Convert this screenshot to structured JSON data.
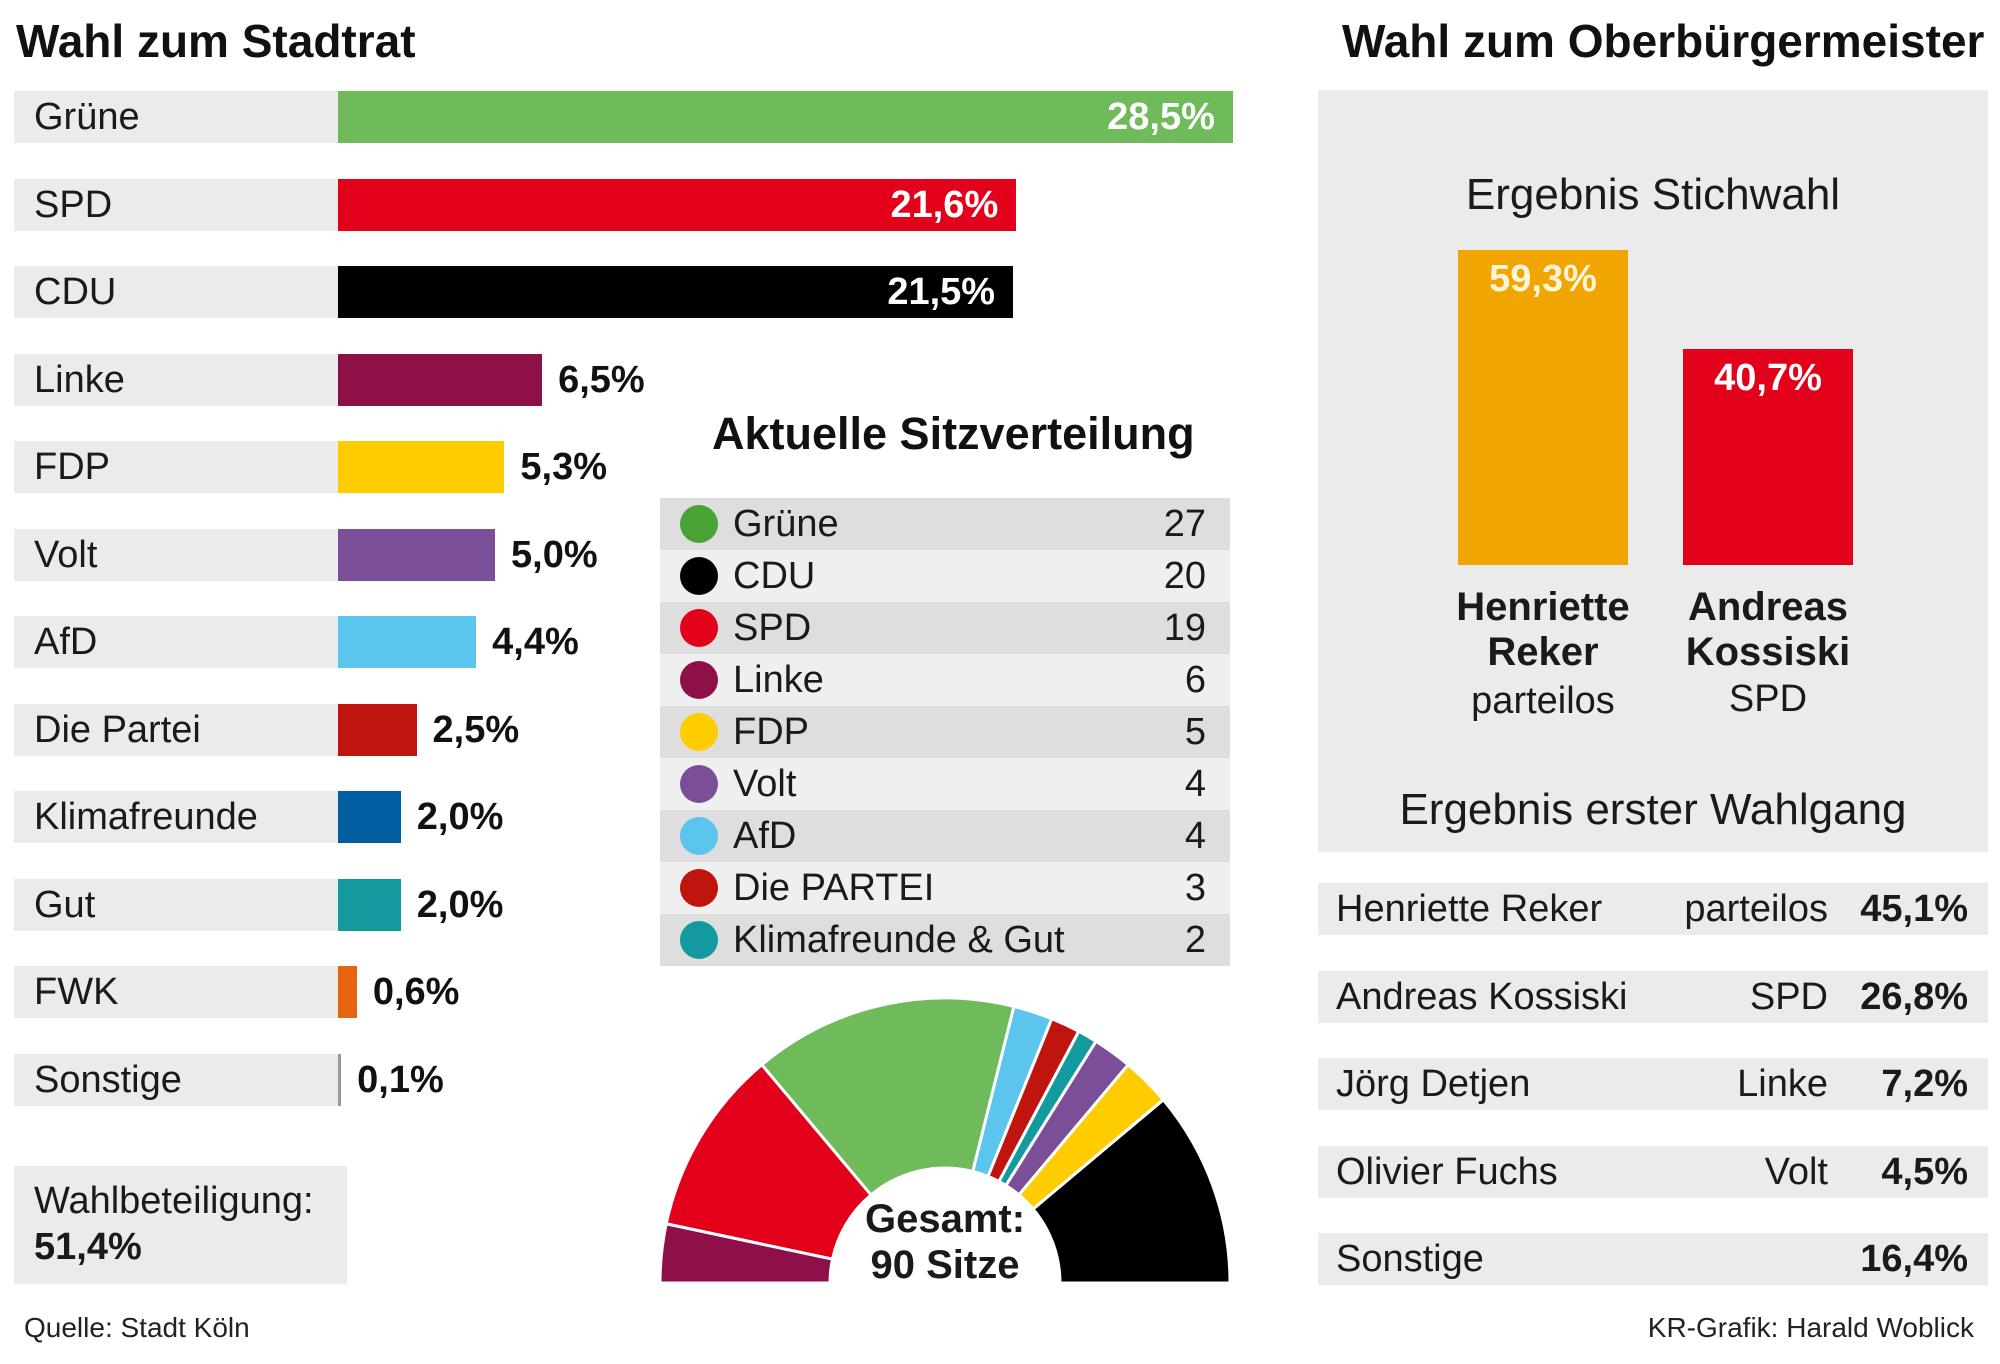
{
  "stadtrat": {
    "title": "Wahl zum Stadtrat",
    "turnout_label": "Wahlbeteiligung:",
    "turnout_value": "51,4%"
  },
  "sitze": {
    "title": "Aktuelle Sitzverteilung",
    "total_line1": "Gesamt:",
    "total_line2": "90 Sitze"
  },
  "ob": {
    "title": "Wahl zum Oberbürgermeister",
    "runoff_title": "Ergebnis Stichwahl",
    "first_round_title": "Ergebnis erster Wahlgang",
    "runoff": [
      {
        "first": "Henriette",
        "last": "Reker",
        "party": "parteilos",
        "label": "59,3%",
        "value": 59.3,
        "color": "#f0a500"
      },
      {
        "first": "Andreas",
        "last": "Kossiski",
        "party": "SPD",
        "label": "40,7%",
        "value": 40.7,
        "color": "#e2001a"
      }
    ],
    "first_round": [
      {
        "name": "Henriette Reker",
        "party": "parteilos",
        "pct": "45,1%"
      },
      {
        "name": "Andreas Kossiski",
        "party": "SPD",
        "pct": "26,8%"
      },
      {
        "name": "Jörg Detjen",
        "party": "Linke",
        "pct": "7,2%"
      },
      {
        "name": "Olivier Fuchs",
        "party": "Volt",
        "pct": "4,5%"
      },
      {
        "name": "Sonstige",
        "party": "",
        "pct": "16,4%"
      }
    ]
  },
  "footer": {
    "source": "Quelle: Stadt Köln",
    "credit": "KR-Grafik: Harald Woblick"
  },
  "chart_data": [
    {
      "type": "bar",
      "orientation": "horizontal",
      "title": "Wahl zum Stadtrat",
      "categories": [
        "Grüne",
        "SPD",
        "CDU",
        "Linke",
        "FDP",
        "Volt",
        "AfD",
        "Die Partei",
        "Klimafreunde",
        "Gut",
        "FWK",
        "Sonstige"
      ],
      "values": [
        28.5,
        21.6,
        21.5,
        6.5,
        5.3,
        5.0,
        4.4,
        2.5,
        2.0,
        2.0,
        0.6,
        0.1
      ],
      "labels": [
        "28,5%",
        "21,6%",
        "21,5%",
        "6,5%",
        "5,3%",
        "5,0%",
        "4,4%",
        "2,5%",
        "2,0%",
        "2,0%",
        "0,6%",
        "0,1%"
      ],
      "colors": [
        "#6fba5b",
        "#e2001a",
        "#000000",
        "#8e1048",
        "#ffcc00",
        "#7b4f97",
        "#5bc5ee",
        "#c0140f",
        "#005fa0",
        "#129a9e",
        "#e8650f",
        "#999999"
      ],
      "unit": "%"
    },
    {
      "type": "pie",
      "variant": "semicircle",
      "title": "Aktuelle Sitzverteilung",
      "categories": [
        "Grüne",
        "CDU",
        "SPD",
        "Linke",
        "FDP",
        "Volt",
        "AfD",
        "Die PARTEI",
        "Klimafreunde & Gut"
      ],
      "values": [
        27,
        20,
        19,
        6,
        5,
        4,
        4,
        3,
        2
      ],
      "colors": [
        "#4aa335",
        "#000000",
        "#e2001a",
        "#8e1048",
        "#ffcc00",
        "#7b4f97",
        "#5bc5ee",
        "#c0140f",
        "#129a9e"
      ],
      "arc_order": [
        "Linke",
        "SPD",
        "Grüne",
        "AfD",
        "Die PARTEI",
        "Klimafreunde & Gut",
        "Volt",
        "FDP",
        "CDU"
      ],
      "arc_colors": {
        "Grüne": "#6fba5b"
      },
      "total": 90
    },
    {
      "type": "bar",
      "title": "Ergebnis Stichwahl",
      "categories": [
        "Henriette Reker",
        "Andreas Kossiski"
      ],
      "values": [
        59.3,
        40.7
      ],
      "unit": "%"
    }
  ]
}
